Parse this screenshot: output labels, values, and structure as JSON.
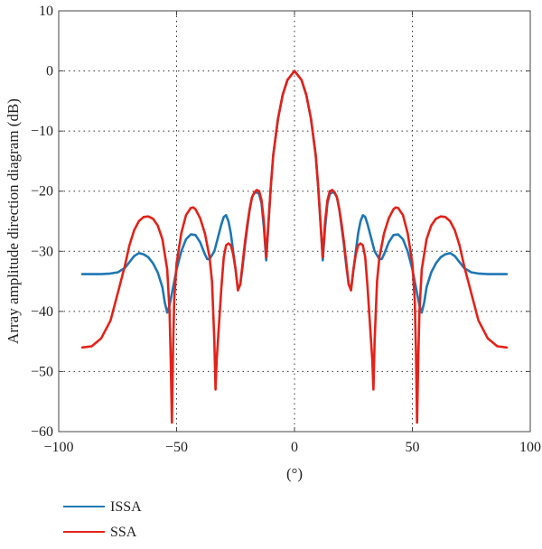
{
  "chart_data": {
    "type": "line",
    "title": "",
    "xlabel": "(°)",
    "ylabel": "Array amplitude direction diagram (dB)",
    "xlim": [
      -100,
      100
    ],
    "ylim": [
      -60,
      10
    ],
    "xticks": [
      -100,
      -50,
      0,
      50,
      100
    ],
    "xtick_labels": [
      "−100",
      "−50",
      "0",
      "50",
      "100"
    ],
    "yticks": [
      10,
      0,
      -10,
      -20,
      -30,
      -40,
      -50,
      -60
    ],
    "ytick_labels": [
      "10",
      "0",
      "−10",
      "−20",
      "−30",
      "−40",
      "−50",
      "−60"
    ],
    "grid": true,
    "legend_position": "below-left",
    "series": [
      {
        "name": "ISSA",
        "color": "#1f77b4",
        "x": [
          0,
          3,
          5,
          7,
          9,
          10,
          11,
          12,
          13,
          14,
          15,
          16,
          17,
          18,
          19,
          20,
          21,
          22,
          23,
          24,
          25,
          26,
          27,
          28,
          29,
          30,
          31,
          32,
          34,
          36,
          37,
          38,
          40,
          42,
          44,
          46,
          48,
          50,
          52,
          53,
          54,
          55,
          56,
          58,
          60,
          62,
          64,
          66,
          68,
          70,
          72,
          75,
          78,
          82,
          86,
          90
        ],
        "y": [
          0,
          -1.5,
          -4,
          -8,
          -14,
          -19,
          -25,
          -31.5,
          -26,
          -22,
          -20.5,
          -20.2,
          -20.3,
          -21,
          -23,
          -26,
          -29,
          -32.5,
          -35.5,
          -36.3,
          -33,
          -30,
          -27,
          -25,
          -24,
          -24.3,
          -25.5,
          -27,
          -30,
          -31.3,
          -31.3,
          -30.5,
          -28.5,
          -27.3,
          -27.2,
          -28,
          -30,
          -33,
          -37,
          -39,
          -40.2,
          -38.5,
          -36,
          -33.5,
          -32,
          -31,
          -30.5,
          -30.3,
          -30.8,
          -31.8,
          -32.8,
          -33.5,
          -33.7,
          -33.8,
          -33.8,
          -33.8
        ]
      },
      {
        "name": "SSA",
        "color": "#e32219",
        "x": [
          0,
          3,
          5,
          7,
          9,
          10,
          11,
          12,
          13,
          14,
          15,
          16,
          17,
          18,
          19,
          20,
          21,
          22,
          23,
          24,
          25,
          26,
          27,
          28,
          29,
          30,
          31,
          32,
          33,
          33.5,
          34,
          35,
          36,
          38,
          40,
          42,
          43,
          44,
          46,
          48,
          50,
          51,
          51.5,
          52,
          52.5,
          53,
          54,
          56,
          58,
          60,
          62,
          64,
          66,
          68,
          70,
          72,
          75,
          78,
          82,
          86,
          90
        ],
        "y": [
          0,
          -1.5,
          -4,
          -8,
          -14,
          -19,
          -25,
          -31,
          -25,
          -21.5,
          -20,
          -19.8,
          -20.2,
          -21,
          -23,
          -25.5,
          -28.5,
          -32,
          -35.5,
          -36.5,
          -33,
          -30.5,
          -29,
          -28.7,
          -29,
          -31,
          -36,
          -42,
          -48,
          -53,
          -45,
          -35,
          -31,
          -27,
          -24.5,
          -23,
          -22.7,
          -22.8,
          -24,
          -27,
          -32,
          -38,
          -46,
          -58.5,
          -48,
          -40,
          -33,
          -28,
          -25.7,
          -24.6,
          -24.2,
          -24.3,
          -25,
          -26.5,
          -29,
          -32.5,
          -37,
          -41.5,
          -44.5,
          -45.8,
          -46
        ]
      }
    ],
    "symmetric": true
  }
}
